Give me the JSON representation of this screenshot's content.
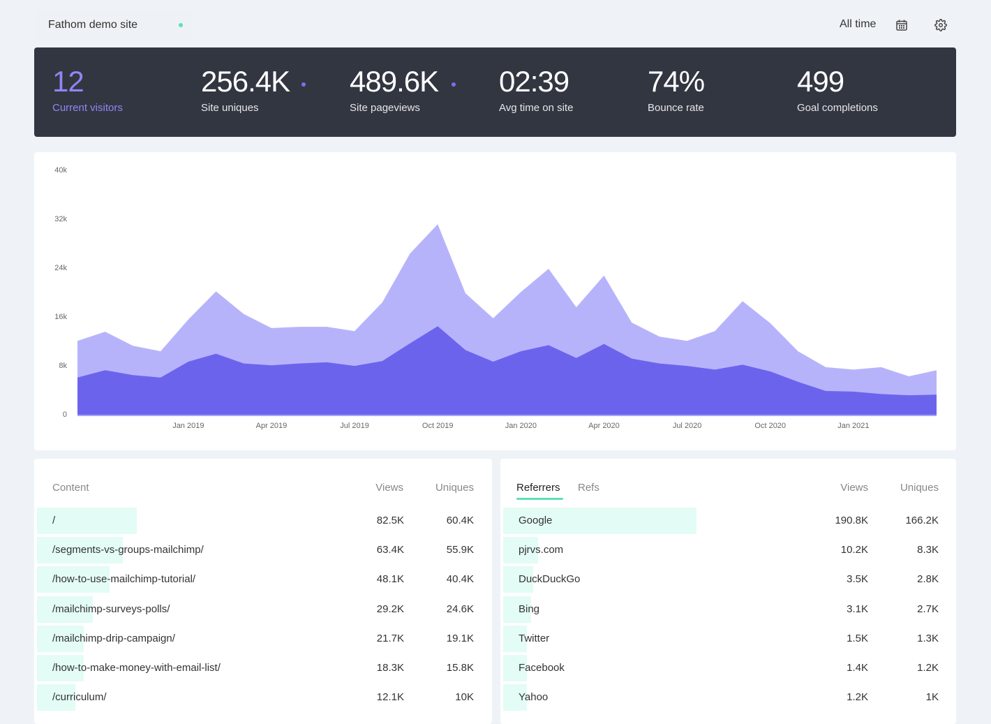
{
  "header": {
    "site_name": "Fathom demo site",
    "range": "All time",
    "colors": {
      "live_dot": "#5ee0b5",
      "accent": "#7c6ff0"
    }
  },
  "stats": [
    {
      "value": "12",
      "label": "Current visitors"
    },
    {
      "value": "256.4K",
      "label": "Site uniques"
    },
    {
      "value": "489.6K",
      "label": "Site pageviews"
    },
    {
      "value": "02:39",
      "label": "Avg time on site"
    },
    {
      "value": "74%",
      "label": "Bounce rate"
    },
    {
      "value": "499",
      "label": "Goal completions"
    }
  ],
  "chart_data": {
    "type": "area",
    "x": [
      "Sep 2018",
      "Oct 2018",
      "Nov 2018",
      "Dec 2018",
      "Jan 2019",
      "Feb 2019",
      "Mar 2019",
      "Apr 2019",
      "May 2019",
      "Jun 2019",
      "Jul 2019",
      "Aug 2019",
      "Sep 2019",
      "Oct 2019",
      "Nov 2019",
      "Dec 2019",
      "Jan 2020",
      "Feb 2020",
      "Mar 2020",
      "Apr 2020",
      "May 2020",
      "Jun 2020",
      "Jul 2020",
      "Aug 2020",
      "Sep 2020",
      "Oct 2020",
      "Nov 2020",
      "Dec 2020",
      "Jan 2021",
      "Feb 2021",
      "Mar 2021",
      "Apr 2021"
    ],
    "series": [
      {
        "name": "Pageviews",
        "color": "#b7b3fb",
        "values": [
          12200,
          13700,
          11400,
          10500,
          15700,
          20300,
          16600,
          14300,
          14500,
          14500,
          13800,
          18500,
          26500,
          31300,
          20000,
          15900,
          20200,
          24000,
          17700,
          22900,
          15200,
          12900,
          12200,
          13800,
          18700,
          15100,
          10500,
          7900,
          7500,
          7900,
          6400,
          7400
        ]
      },
      {
        "name": "Uniques",
        "color": "#6c63ed",
        "values": [
          6200,
          7400,
          6600,
          6200,
          8800,
          10100,
          8500,
          8200,
          8500,
          8700,
          8100,
          8900,
          11800,
          14600,
          10700,
          8800,
          10500,
          11500,
          9400,
          11700,
          9300,
          8500,
          8100,
          7500,
          8300,
          7200,
          5500,
          4000,
          3900,
          3500,
          3300,
          3400
        ]
      }
    ],
    "y_ticks": [
      "0",
      "8k",
      "16k",
      "24k",
      "32k",
      "40k"
    ],
    "ylim": [
      0,
      40000
    ],
    "x_tick_labels": [
      {
        "label": "Jan 2019",
        "index": 4
      },
      {
        "label": "Apr 2019",
        "index": 7
      },
      {
        "label": "Jul 2019",
        "index": 10
      },
      {
        "label": "Oct 2019",
        "index": 13
      },
      {
        "label": "Jan 2020",
        "index": 16
      },
      {
        "label": "Apr 2020",
        "index": 19
      },
      {
        "label": "Jul 2020",
        "index": 22
      },
      {
        "label": "Oct 2020",
        "index": 25
      },
      {
        "label": "Jan 2021",
        "index": 28
      }
    ],
    "grid": false
  },
  "content": {
    "headers": {
      "name": "Content",
      "views": "Views",
      "uniques": "Uniques"
    },
    "rows": [
      {
        "name": "/",
        "views": "82.5K",
        "uniques": "60.4K",
        "share": 0.22
      },
      {
        "name": "/segments-vs-groups-mailchimp/",
        "views": "63.4K",
        "uniques": "55.9K",
        "share": 0.19
      },
      {
        "name": "/how-to-use-mailchimp-tutorial/",
        "views": "48.1K",
        "uniques": "40.4K",
        "share": 0.16
      },
      {
        "name": "/mailchimp-surveys-polls/",
        "views": "29.2K",
        "uniques": "24.6K",
        "share": 0.123
      },
      {
        "name": "/mailchimp-drip-campaign/",
        "views": "21.7K",
        "uniques": "19.1K",
        "share": 0.103
      },
      {
        "name": "/how-to-make-money-with-email-list/",
        "views": "18.3K",
        "uniques": "15.8K",
        "share": 0.103
      },
      {
        "name": "/curriculum/",
        "views": "12.1K",
        "uniques": "10K",
        "share": 0.085
      }
    ]
  },
  "referrers": {
    "tabs": [
      "Referrers",
      "Refs"
    ],
    "headers": {
      "views": "Views",
      "uniques": "Uniques"
    },
    "rows": [
      {
        "name": "Google",
        "views": "190.8K",
        "uniques": "166.2K",
        "share": 0.43
      },
      {
        "name": "pjrvs.com",
        "views": "10.2K",
        "uniques": "8.3K",
        "share": 0.078
      },
      {
        "name": "DuckDuckGo",
        "views": "3.5K",
        "uniques": "2.8K",
        "share": 0.066
      },
      {
        "name": "Bing",
        "views": "3.1K",
        "uniques": "2.7K",
        "share": 0.062
      },
      {
        "name": "Twitter",
        "views": "1.5K",
        "uniques": "1.3K",
        "share": 0.052
      },
      {
        "name": "Facebook",
        "views": "1.4K",
        "uniques": "1.2K",
        "share": 0.052
      },
      {
        "name": "Yahoo",
        "views": "1.2K",
        "uniques": "1K",
        "share": 0.052
      }
    ]
  }
}
